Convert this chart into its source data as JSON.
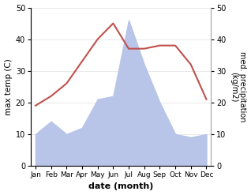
{
  "months": [
    "Jan",
    "Feb",
    "Mar",
    "Apr",
    "May",
    "Jun",
    "Jul",
    "Aug",
    "Sep",
    "Oct",
    "Nov",
    "Dec"
  ],
  "temperature": [
    19,
    22,
    26,
    33,
    40,
    45,
    37,
    37,
    38,
    38,
    32,
    21
  ],
  "precipitation": [
    10,
    14,
    10,
    12,
    21,
    22,
    46,
    32,
    20,
    10,
    9,
    10
  ],
  "temp_color": "#c0504d",
  "precip_fill_color": "#b8c4e8",
  "temp_ylim": [
    0,
    50
  ],
  "precip_ylim": [
    0,
    50
  ],
  "temp_ylabel": "max temp (C)",
  "precip_ylabel": "med. precipitation\n(kg/m2)",
  "xlabel": "date (month)",
  "yticks": [
    0,
    10,
    20,
    30,
    40,
    50
  ],
  "background_color": "#ffffff",
  "spine_color": "#aaaaaa",
  "grid_color": "#e0e0e0"
}
